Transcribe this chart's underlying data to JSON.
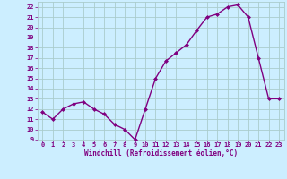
{
  "x": [
    0,
    1,
    2,
    3,
    4,
    5,
    6,
    7,
    8,
    9,
    10,
    11,
    12,
    13,
    14,
    15,
    16,
    17,
    18,
    19,
    20,
    21,
    22,
    23
  ],
  "y": [
    11.7,
    11.0,
    12.0,
    12.5,
    12.7,
    12.0,
    11.5,
    10.5,
    10.0,
    9.0,
    12.0,
    15.0,
    16.7,
    17.5,
    18.3,
    19.7,
    21.0,
    21.3,
    22.0,
    22.2,
    21.0,
    17.0,
    13.0,
    13.0
  ],
  "line_color": "#800080",
  "marker": "D",
  "marker_size": 2,
  "line_width": 1.0,
  "bg_color": "#cceeff",
  "grid_color": "#aacccc",
  "xlabel": "Windchill (Refroidissement éolien,°C)",
  "xlabel_color": "#800080",
  "xlabel_fontsize": 5.5,
  "tick_color": "#800080",
  "tick_fontsize": 5,
  "ylim": [
    9,
    22.5
  ],
  "xlim": [
    -0.5,
    23.5
  ],
  "yticks": [
    9,
    10,
    11,
    12,
    13,
    14,
    15,
    16,
    17,
    18,
    19,
    20,
    21,
    22
  ],
  "xticks": [
    0,
    1,
    2,
    3,
    4,
    5,
    6,
    7,
    8,
    9,
    10,
    11,
    12,
    13,
    14,
    15,
    16,
    17,
    18,
    19,
    20,
    21,
    22,
    23
  ]
}
